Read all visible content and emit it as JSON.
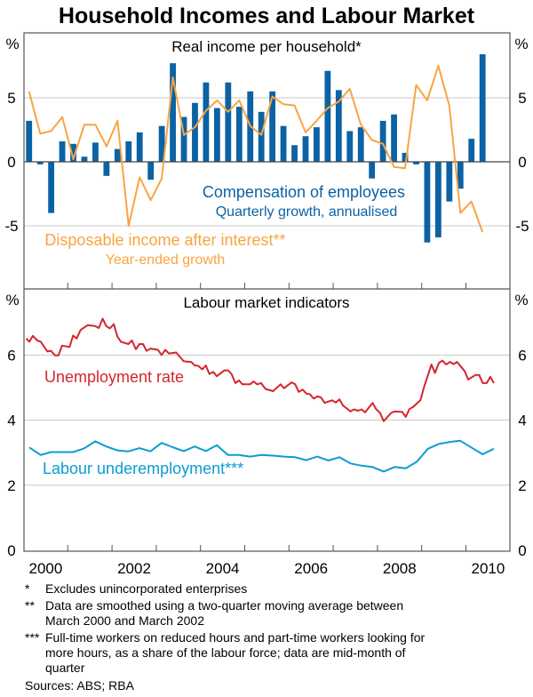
{
  "title": "Household Incomes and Labour Market",
  "colors": {
    "compensation": "#0b62a4",
    "disposable": "#f7a540",
    "unemployment": "#d3262d",
    "underemployment": "#0d9bd2",
    "grid": "#c8c8c8"
  },
  "chart_data": [
    {
      "type": "bar+line",
      "title": "Real income per household*",
      "ylabel_left": "%",
      "ylabel_right": "%",
      "ylim": [
        -10,
        10
      ],
      "yticks": [
        "5",
        "0",
        "-5"
      ],
      "grid": true,
      "xlim": [
        2000,
        2011
      ],
      "x_quarters_start": "Mar-2000",
      "series": [
        {
          "name": "Compensation of employees",
          "subtitle": "Quarterly growth, annualised",
          "kind": "bar",
          "values": [
            3.2,
            -0.2,
            -4.0,
            1.6,
            1.4,
            0.4,
            1.5,
            -1.1,
            1.0,
            1.6,
            2.3,
            -1.4,
            2.8,
            7.7,
            3.5,
            4.6,
            6.2,
            4.2,
            6.2,
            4.3,
            5.5,
            3.9,
            5.5,
            2.8,
            1.3,
            2.0,
            2.7,
            7.1,
            5.6,
            2.4,
            2.7,
            -1.3,
            3.2,
            3.7,
            0.7,
            -0.2,
            -6.3,
            -5.9,
            -3.1,
            -2.1,
            1.8,
            8.4
          ]
        },
        {
          "name": "Disposable income after interest**",
          "subtitle": "Year-ended growth",
          "kind": "line",
          "values": [
            5.5,
            2.2,
            2.4,
            3.5,
            0.2,
            2.9,
            2.9,
            1.2,
            3.2,
            -5.0,
            -1.2,
            -3.0,
            -1.3,
            6.6,
            2.1,
            2.7,
            4.0,
            4.8,
            3.9,
            4.8,
            2.8,
            2.1,
            5.1,
            4.5,
            4.4,
            2.3,
            3.2,
            4.2,
            4.7,
            5.7,
            2.9,
            1.7,
            1.4,
            -0.4,
            -0.5,
            6.0,
            4.8,
            7.5,
            4.4,
            -4.0,
            -3.1,
            -5.5
          ]
        }
      ]
    },
    {
      "type": "line",
      "title": "Labour market indicators",
      "ylabel_left": "%",
      "ylabel_right": "%",
      "ylim": [
        0,
        8
      ],
      "yticks": [
        "6",
        "4",
        "2",
        "0"
      ],
      "grid": true,
      "xlim": [
        2000,
        2011
      ],
      "xticklabels": [
        "2000",
        "2002",
        "2004",
        "2006",
        "2008",
        "2010"
      ],
      "series": [
        {
          "name": "Unemployment rate",
          "points": [
            [
              2000.06,
              6.51
            ],
            [
              2000.13,
              6.41
            ],
            [
              2000.21,
              6.59
            ],
            [
              2000.31,
              6.45
            ],
            [
              2000.39,
              6.41
            ],
            [
              2000.54,
              6.11
            ],
            [
              2000.62,
              6.13
            ],
            [
              2000.71,
              5.99
            ],
            [
              2000.79,
              5.99
            ],
            [
              2000.87,
              6.29
            ],
            [
              2001.04,
              6.25
            ],
            [
              2001.12,
              6.6
            ],
            [
              2001.2,
              6.51
            ],
            [
              2001.29,
              6.77
            ],
            [
              2001.45,
              6.92
            ],
            [
              2001.62,
              6.89
            ],
            [
              2001.7,
              6.83
            ],
            [
              2001.79,
              7.12
            ],
            [
              2001.87,
              6.89
            ],
            [
              2001.95,
              6.82
            ],
            [
              2002.04,
              6.95
            ],
            [
              2002.12,
              6.57
            ],
            [
              2002.2,
              6.41
            ],
            [
              2002.37,
              6.34
            ],
            [
              2002.45,
              6.45
            ],
            [
              2002.54,
              6.18
            ],
            [
              2002.62,
              6.34
            ],
            [
              2002.7,
              6.34
            ],
            [
              2002.78,
              6.13
            ],
            [
              2002.87,
              6.2
            ],
            [
              2003.04,
              6.16
            ],
            [
              2003.12,
              6.0
            ],
            [
              2003.2,
              6.16
            ],
            [
              2003.29,
              6.05
            ],
            [
              2003.45,
              6.08
            ],
            [
              2003.62,
              5.81
            ],
            [
              2003.79,
              5.79
            ],
            [
              2003.87,
              5.68
            ],
            [
              2003.95,
              5.67
            ],
            [
              2004.04,
              5.56
            ],
            [
              2004.12,
              5.68
            ],
            [
              2004.2,
              5.42
            ],
            [
              2004.29,
              5.48
            ],
            [
              2004.37,
              5.35
            ],
            [
              2004.54,
              5.53
            ],
            [
              2004.62,
              5.53
            ],
            [
              2004.7,
              5.42
            ],
            [
              2004.79,
              5.14
            ],
            [
              2004.87,
              5.22
            ],
            [
              2004.95,
              5.1
            ],
            [
              2005.12,
              5.1
            ],
            [
              2005.2,
              5.19
            ],
            [
              2005.28,
              5.1
            ],
            [
              2005.37,
              5.14
            ],
            [
              2005.47,
              4.96
            ],
            [
              2005.64,
              4.89
            ],
            [
              2005.81,
              5.1
            ],
            [
              2005.89,
              4.98
            ],
            [
              2006.06,
              5.16
            ],
            [
              2006.14,
              5.1
            ],
            [
              2006.22,
              4.87
            ],
            [
              2006.31,
              4.94
            ],
            [
              2006.39,
              4.82
            ],
            [
              2006.47,
              4.8
            ],
            [
              2006.56,
              4.66
            ],
            [
              2006.64,
              4.73
            ],
            [
              2006.72,
              4.7
            ],
            [
              2006.81,
              4.53
            ],
            [
              2006.97,
              4.61
            ],
            [
              2007.06,
              4.54
            ],
            [
              2007.14,
              4.64
            ],
            [
              2007.22,
              4.45
            ],
            [
              2007.39,
              4.27
            ],
            [
              2007.47,
              4.33
            ],
            [
              2007.56,
              4.29
            ],
            [
              2007.64,
              4.33
            ],
            [
              2007.72,
              4.24
            ],
            [
              2007.89,
              4.53
            ],
            [
              2007.97,
              4.34
            ],
            [
              2008.06,
              4.22
            ],
            [
              2008.14,
              3.97
            ],
            [
              2008.31,
              4.22
            ],
            [
              2008.39,
              4.27
            ],
            [
              2008.56,
              4.25
            ],
            [
              2008.64,
              4.1
            ],
            [
              2008.72,
              4.34
            ],
            [
              2008.81,
              4.41
            ],
            [
              2008.97,
              4.61
            ],
            [
              2009.06,
              5.05
            ],
            [
              2009.22,
              5.71
            ],
            [
              2009.3,
              5.45
            ],
            [
              2009.39,
              5.76
            ],
            [
              2009.47,
              5.83
            ],
            [
              2009.55,
              5.71
            ],
            [
              2009.64,
              5.79
            ],
            [
              2009.72,
              5.72
            ],
            [
              2009.8,
              5.79
            ],
            [
              2009.97,
              5.51
            ],
            [
              2010.05,
              5.25
            ],
            [
              2010.22,
              5.39
            ],
            [
              2010.3,
              5.39
            ],
            [
              2010.38,
              5.14
            ],
            [
              2010.47,
              5.14
            ],
            [
              2010.55,
              5.33
            ],
            [
              2010.63,
              5.14
            ]
          ]
        },
        {
          "name": "Labour underemployment***",
          "points": [
            [
              2000.13,
              3.16
            ],
            [
              2000.39,
              2.93
            ],
            [
              2000.62,
              3.02
            ],
            [
              2001.12,
              3.02
            ],
            [
              2001.37,
              3.13
            ],
            [
              2001.62,
              3.35
            ],
            [
              2001.87,
              3.19
            ],
            [
              2002.12,
              3.07
            ],
            [
              2002.37,
              3.04
            ],
            [
              2002.62,
              3.14
            ],
            [
              2002.87,
              3.04
            ],
            [
              2003.12,
              3.3
            ],
            [
              2003.37,
              3.17
            ],
            [
              2003.62,
              3.05
            ],
            [
              2003.87,
              3.19
            ],
            [
              2004.12,
              3.05
            ],
            [
              2004.37,
              3.23
            ],
            [
              2004.62,
              2.93
            ],
            [
              2004.87,
              2.93
            ],
            [
              2005.12,
              2.88
            ],
            [
              2005.37,
              2.93
            ],
            [
              2005.64,
              2.91
            ],
            [
              2005.89,
              2.88
            ],
            [
              2006.14,
              2.86
            ],
            [
              2006.39,
              2.77
            ],
            [
              2006.64,
              2.88
            ],
            [
              2006.89,
              2.76
            ],
            [
              2007.14,
              2.86
            ],
            [
              2007.39,
              2.67
            ],
            [
              2007.64,
              2.6
            ],
            [
              2007.89,
              2.56
            ],
            [
              2008.14,
              2.42
            ],
            [
              2008.39,
              2.56
            ],
            [
              2008.64,
              2.52
            ],
            [
              2008.89,
              2.72
            ],
            [
              2009.14,
              3.12
            ],
            [
              2009.39,
              3.27
            ],
            [
              2009.64,
              3.33
            ],
            [
              2009.87,
              3.37
            ],
            [
              2010.12,
              3.16
            ],
            [
              2010.38,
              2.95
            ],
            [
              2010.63,
              3.12
            ]
          ]
        }
      ]
    }
  ],
  "notes": [
    {
      "marker": "*",
      "lines": [
        "Excludes unincorporated enterprises"
      ]
    },
    {
      "marker": "**",
      "lines": [
        "Data are smoothed using a two-quarter moving average between",
        "March 2000 and March 2002"
      ]
    },
    {
      "marker": "***",
      "lines": [
        "Full-time workers on reduced hours and part-time workers looking for",
        "more hours, as a share of the labour force; data are mid-month of",
        "quarter"
      ]
    }
  ],
  "sources": "Sources: ABS; RBA"
}
